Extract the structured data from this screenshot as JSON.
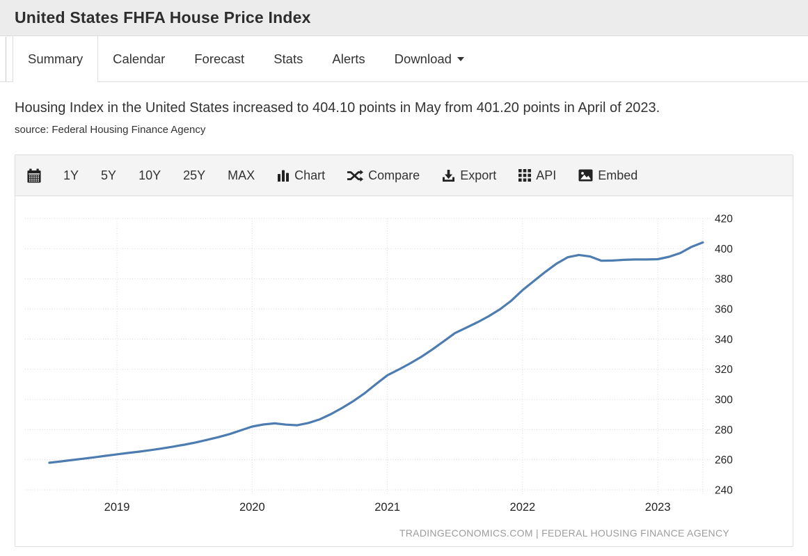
{
  "header": {
    "title": "United States FHFA House Price Index"
  },
  "tabs": {
    "items": [
      {
        "label": "Summary",
        "active": true,
        "caret": false
      },
      {
        "label": "Calendar",
        "active": false,
        "caret": false
      },
      {
        "label": "Forecast",
        "active": false,
        "caret": false
      },
      {
        "label": "Stats",
        "active": false,
        "caret": false
      },
      {
        "label": "Alerts",
        "active": false,
        "caret": false
      },
      {
        "label": "Download",
        "active": false,
        "caret": true
      }
    ]
  },
  "summary": {
    "description": "Housing Index in the United States increased to 404.10 points in May from 401.20 points in April of 2023.",
    "source": "source: Federal Housing Finance Agency"
  },
  "toolbar": {
    "items": [
      {
        "name": "datepicker",
        "icon": "calendar-icon",
        "label": ""
      },
      {
        "name": "range-1y",
        "icon": "",
        "label": "1Y"
      },
      {
        "name": "range-5y",
        "icon": "",
        "label": "5Y"
      },
      {
        "name": "range-10y",
        "icon": "",
        "label": "10Y"
      },
      {
        "name": "range-25y",
        "icon": "",
        "label": "25Y"
      },
      {
        "name": "range-max",
        "icon": "",
        "label": "MAX"
      },
      {
        "name": "chart-type",
        "icon": "bar-chart-icon",
        "label": "Chart"
      },
      {
        "name": "compare",
        "icon": "compare-icon",
        "label": "Compare"
      },
      {
        "name": "export",
        "icon": "export-icon",
        "label": "Export"
      },
      {
        "name": "api",
        "icon": "api-grid-icon",
        "label": "API"
      },
      {
        "name": "embed",
        "icon": "embed-image-icon",
        "label": "Embed"
      }
    ]
  },
  "chart_data": {
    "type": "line",
    "title": "United States FHFA House Price Index",
    "xlabel": "",
    "ylabel": "",
    "interval": "monthly",
    "x_start": "2018-07",
    "x_end": "2023-05",
    "series": [
      {
        "name": "FHFA House Price Index (points)",
        "values": [
          258.0,
          258.9,
          259.8,
          260.7,
          261.6,
          262.6,
          263.6,
          264.5,
          265.4,
          266.4,
          267.5,
          268.7,
          270.0,
          271.5,
          273.2,
          275.0,
          277.0,
          279.5,
          282.0,
          283.4,
          284.1,
          283.3,
          282.9,
          284.4,
          286.8,
          290.3,
          294.4,
          299.0,
          304.2,
          310.2,
          316.0,
          319.8,
          323.8,
          328.2,
          333.2,
          338.6,
          344.0,
          347.6,
          351.2,
          355.2,
          359.8,
          365.5,
          372.5,
          378.5,
          384.5,
          390.0,
          394.3,
          395.8,
          394.8,
          392.0,
          392.1,
          392.6,
          392.8,
          392.8,
          393.0,
          394.6,
          397.1,
          401.2,
          404.1
        ]
      }
    ],
    "x_tick_labels": [
      "2019",
      "2020",
      "2021",
      "2022",
      "2023"
    ],
    "x_tick_month_index": [
      6,
      18,
      30,
      42,
      54
    ],
    "y_ticks": [
      240,
      260,
      280,
      300,
      320,
      340,
      360,
      380,
      400,
      420
    ],
    "ylim": [
      240,
      420
    ],
    "grid": "dotted",
    "legend": "none",
    "last_value": 404.1,
    "prev_value": 401.2
  },
  "chart_footer": {
    "watermark": "TRADINGECONOMICS.COM | FEDERAL HOUSING FINANCE AGENCY"
  },
  "colors": {
    "line": "#4d7cb0",
    "grid": "#dadada",
    "axis_text": "#222222",
    "header_bg": "#ececec",
    "toolbar_bg": "#f4f4f4",
    "border": "#dddddd",
    "watermark": "#9c9c9c",
    "icon": "#222222"
  }
}
